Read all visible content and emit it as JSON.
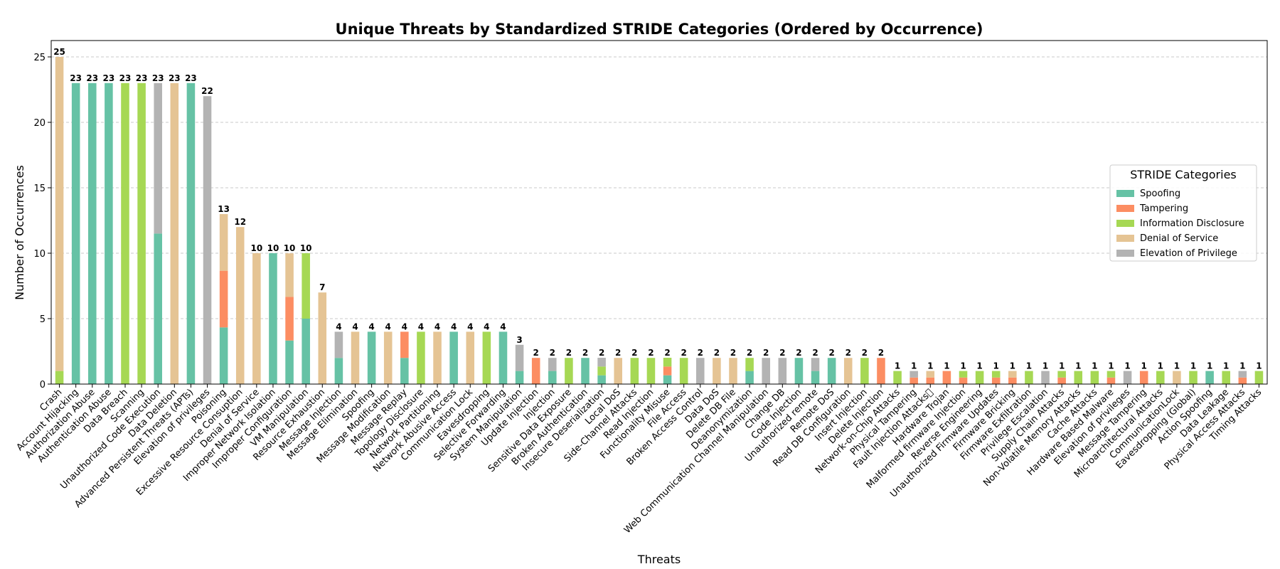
{
  "chart_data": {
    "type": "bar",
    "stacked": true,
    "title": "Unique Threats by Standardized STRIDE Categories (Ordered by Occurrence)",
    "xlabel": "Threats",
    "ylabel": "Number of Occurrences",
    "ylim": [
      0,
      26.25
    ],
    "yticks": [
      0,
      5,
      10,
      15,
      20,
      25
    ],
    "grid": "horizontal-dashed",
    "legend": {
      "title": "STRIDE Categories",
      "placement": "center-right"
    },
    "categories": [
      "Crash",
      "Account Hijacking",
      "Authorization Abuse",
      "Authentication Abuse",
      "Data Breach",
      "Scanning",
      "Unauthorized Code Execution",
      "Data Deletion",
      "Advanced Persistent Threats (APTs)",
      "Elevation of privileges",
      "Poisoning",
      "Excessive Resource Consuption",
      "Denial of Service",
      "Improper Network Isolation",
      "Improper Configuration",
      "VM Manipulation",
      "Resource Exhaustion",
      "Message Injection",
      "Message Elimination",
      "Spoofing",
      "Message Modification",
      "Message Replay",
      "Topology Disclosure",
      "Network Partitioning",
      "Network Abusive Access",
      "Communication Lock",
      "Eavesdropping",
      "Selective Forwarding",
      "System Manipulation",
      "Update Injection",
      "Injection",
      "Sensitive Data Exposure",
      "Broken Authentication",
      "Insecure Deserialization",
      "Local DoS",
      "Side-Channel Attacks",
      "Read Injection",
      "Functionality Misuse",
      "File Access",
      "Broken Access Control",
      "Data DoS",
      "Delete DB File",
      "Deanonymization",
      "Web Communication Channel Manipulation",
      "Change DB",
      "Code Injection",
      "Unauthorized remote",
      "Remote DoS",
      "Read DB Configuration",
      "Insert Injection",
      "Delete Injection",
      "Network-on-Chip Attacks",
      "Physical Tampering",
      "Fault Injection Attacks\u0000",
      "Hardware Trojan",
      "Malformed firmware Injection",
      "Reverse Engineering",
      "Unauthorized Firmware Updates",
      "Firmware Bricking",
      "Firmware Exfiltration",
      "Privilege Escalation",
      "Supply Chain Attacks",
      "Non-Volatile Memory Attacks",
      "Cache Attacks",
      "Hardware Based Malware",
      "Elevation of privileges",
      "Message Tampering",
      "Microarchitectural Attacks",
      "CommunicationLock",
      "Eavesdropping (Global)",
      "Action Spoofing",
      "Data Leakage",
      "Physical Access Attacks",
      "Timing Attacks"
    ],
    "totals": [
      25,
      23,
      23,
      23,
      23,
      23,
      23,
      23,
      23,
      22,
      13,
      12,
      10,
      10,
      10,
      10,
      7,
      4,
      4,
      4,
      4,
      4,
      4,
      4,
      4,
      4,
      4,
      4,
      3,
      2,
      2,
      2,
      2,
      2,
      2,
      2,
      2,
      2,
      2,
      2,
      2,
      2,
      2,
      2,
      2,
      2,
      2,
      2,
      2,
      2,
      2,
      1,
      1,
      1,
      1,
      1,
      1,
      1,
      1,
      1,
      1,
      1,
      1,
      1,
      1,
      1,
      1,
      1,
      1,
      1,
      1,
      1,
      1,
      1
    ],
    "series": [
      {
        "name": "Spoofing",
        "color": "#66c2a5",
        "values": [
          0,
          23,
          23,
          23,
          0,
          0,
          11.5,
          0,
          23,
          0,
          4.33,
          0,
          0,
          10,
          3.33,
          5,
          0,
          2,
          0,
          4,
          0,
          2,
          0,
          0,
          4,
          0,
          0,
          4,
          1,
          0,
          1,
          0,
          2,
          0.67,
          0,
          0,
          0,
          0.67,
          0,
          0,
          0,
          0,
          1,
          0,
          0,
          2,
          1,
          2,
          0,
          0,
          0,
          0,
          0,
          0,
          0,
          0,
          0,
          0,
          0,
          0,
          0,
          0,
          0,
          0,
          0,
          0,
          0,
          0,
          0,
          0,
          1,
          0,
          0,
          0
        ]
      },
      {
        "name": "Tampering",
        "color": "#fc8d62",
        "values": [
          0,
          0,
          0,
          0,
          0,
          0,
          0,
          0,
          0,
          0,
          4.33,
          0,
          0,
          0,
          3.33,
          0,
          0,
          0,
          0,
          0,
          0,
          2,
          0,
          0,
          0,
          0,
          0,
          0,
          0,
          2,
          0,
          0,
          0,
          0,
          0,
          0,
          0,
          0.67,
          0,
          0,
          0,
          0,
          0,
          0,
          0,
          0,
          0,
          0,
          0,
          0,
          2,
          0,
          0.5,
          0.5,
          1,
          0.5,
          0,
          0.5,
          0.5,
          0,
          0,
          0.5,
          0,
          0,
          0.5,
          0,
          1,
          0,
          0,
          0,
          0,
          0,
          0.5,
          0
        ]
      },
      {
        "name": "Information Disclosure",
        "color": "#a6d854",
        "values": [
          1,
          0,
          0,
          0,
          23,
          23,
          0,
          0,
          0,
          0,
          0,
          0,
          0,
          0,
          0,
          5,
          0,
          0,
          0,
          0,
          0,
          0,
          4,
          0,
          0,
          0,
          4,
          0,
          0,
          0,
          0,
          2,
          0,
          0.67,
          0,
          2,
          2,
          0.67,
          2,
          0,
          0,
          0,
          1,
          0,
          0,
          0,
          0,
          0,
          0,
          2,
          0,
          1,
          0,
          0,
          0,
          0.5,
          1,
          0.5,
          0,
          1,
          0,
          0.5,
          1,
          1,
          0.5,
          0,
          0,
          1,
          0,
          1,
          0,
          1,
          0,
          1
        ]
      },
      {
        "name": "Denial of Service",
        "color": "#e5c494",
        "values": [
          24,
          0,
          0,
          0,
          0,
          0,
          0,
          23,
          0,
          0,
          4.33,
          12,
          10,
          0,
          3.33,
          0,
          7,
          0,
          4,
          0,
          4,
          0,
          0,
          4,
          0,
          4,
          0,
          0,
          0,
          0,
          0,
          0,
          0,
          0,
          2,
          0,
          0,
          0,
          0,
          0,
          2,
          2,
          0,
          0,
          0,
          0,
          0,
          0,
          2,
          0,
          0,
          0,
          0,
          0.5,
          0,
          0,
          0,
          0,
          0.5,
          0,
          0,
          0,
          0,
          0,
          0,
          0,
          0,
          0,
          1,
          0,
          0,
          0,
          0,
          0
        ]
      },
      {
        "name": "Elevation of Privilege",
        "color": "#b3b3b3",
        "values": [
          0,
          0,
          0,
          0,
          0,
          0,
          11.5,
          0,
          0,
          22,
          0,
          0,
          0,
          0,
          0,
          0,
          0,
          2,
          0,
          0,
          0,
          0,
          0,
          0,
          0,
          0,
          0,
          0,
          2,
          0,
          1,
          0,
          0,
          0.67,
          0,
          0,
          0,
          0,
          0,
          2,
          0,
          0,
          0,
          2,
          2,
          0,
          1,
          0,
          0,
          0,
          0,
          0,
          0.5,
          0,
          0,
          0,
          0,
          0,
          0,
          0,
          1,
          0,
          0,
          0,
          0,
          1,
          0,
          0,
          0,
          0,
          0,
          0,
          0.5,
          0
        ]
      }
    ]
  }
}
